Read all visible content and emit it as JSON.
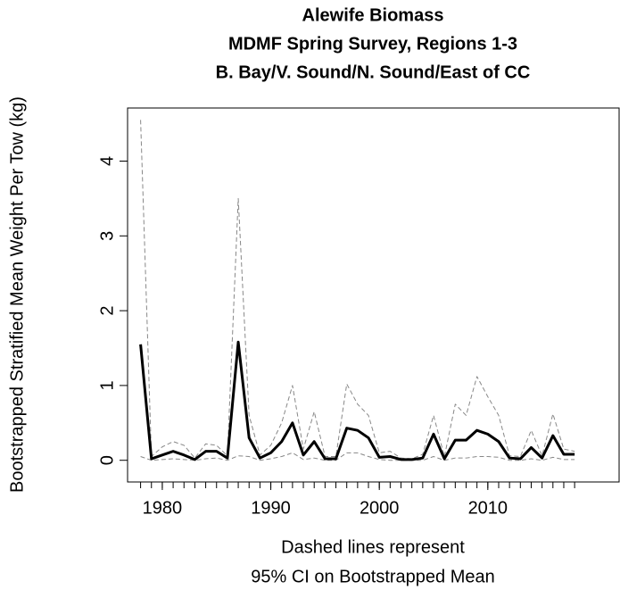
{
  "chart_data": {
    "type": "line",
    "title_lines": [
      "Alewife Biomass",
      "MDMF Spring Survey, Regions 1-3",
      "B. Bay/V. Sound/N. Sound/East of CC"
    ],
    "y_label": "Bootstrapped Stratified Mean Weight Per Tow (kg)",
    "x_label_lines": [
      "Dashed lines represent",
      "95% CI on Bootstrapped Mean"
    ],
    "x": [
      1978,
      1979,
      1980,
      1981,
      1982,
      1983,
      1984,
      1985,
      1986,
      1987,
      1988,
      1989,
      1990,
      1991,
      1992,
      1993,
      1994,
      1995,
      1996,
      1997,
      1998,
      1999,
      2000,
      2001,
      2002,
      2003,
      2004,
      2005,
      2006,
      2007,
      2008,
      2009,
      2010,
      2011,
      2012,
      2013,
      2014,
      2015,
      2016,
      2017,
      2018
    ],
    "series": [
      {
        "color": "#000000",
        "line_style": "solid",
        "line_width": 3,
        "values": [
          1.55,
          0.02,
          0.07,
          0.12,
          0.07,
          0.01,
          0.12,
          0.12,
          0.03,
          1.58,
          0.3,
          0.03,
          0.1,
          0.25,
          0.5,
          0.07,
          0.25,
          0.02,
          0.02,
          0.43,
          0.4,
          0.3,
          0.04,
          0.05,
          0.01,
          0.01,
          0.03,
          0.35,
          0.02,
          0.27,
          0.27,
          0.4,
          0.35,
          0.25,
          0.03,
          0.02,
          0.17,
          0.03,
          0.33,
          0.08,
          0.08
        ]
      },
      {
        "color": "#888888",
        "line_style": "dashed",
        "line_width": 1,
        "values": [
          4.55,
          0.05,
          0.18,
          0.25,
          0.2,
          0.03,
          0.22,
          0.2,
          0.06,
          3.5,
          0.6,
          0.07,
          0.2,
          0.5,
          1.0,
          0.15,
          0.65,
          0.05,
          0.05,
          1.02,
          0.75,
          0.6,
          0.1,
          0.12,
          0.03,
          0.02,
          0.08,
          0.6,
          0.05,
          0.75,
          0.6,
          1.12,
          0.85,
          0.6,
          0.06,
          0.05,
          0.4,
          0.06,
          0.62,
          0.15,
          0.12
        ]
      },
      {
        "color": "#888888",
        "line_style": "dashed",
        "line_width": 1,
        "values": [
          0.05,
          0.0,
          0.01,
          0.02,
          0.01,
          0.0,
          0.02,
          0.03,
          0.0,
          0.06,
          0.05,
          0.0,
          0.02,
          0.05,
          0.1,
          0.01,
          0.03,
          0.0,
          0.0,
          0.1,
          0.1,
          0.05,
          0.01,
          0.0,
          0.0,
          0.0,
          0.0,
          0.05,
          0.0,
          0.03,
          0.03,
          0.05,
          0.05,
          0.04,
          0.0,
          0.0,
          0.02,
          0.0,
          0.04,
          0.01,
          0.01
        ]
      }
    ],
    "xlim": [
      1976.8,
      2022.1
    ],
    "ylim": [
      -0.29,
      4.71
    ],
    "xticks": [
      1980,
      1990,
      2000,
      2010
    ],
    "x_minor_ticks": [
      1978,
      1979,
      1980,
      1981,
      1982,
      1983,
      1984,
      1985,
      1986,
      1987,
      1988,
      1989,
      1990,
      1991,
      1992,
      1993,
      1994,
      1995,
      1996,
      1997,
      1998,
      1999,
      2000,
      2001,
      2002,
      2003,
      2004,
      2005,
      2006,
      2007,
      2008,
      2009,
      2010,
      2011,
      2012,
      2013,
      2014,
      2015,
      2016,
      2017,
      2018
    ],
    "yticks": [
      0,
      1,
      2,
      3,
      4
    ],
    "grid": false
  }
}
